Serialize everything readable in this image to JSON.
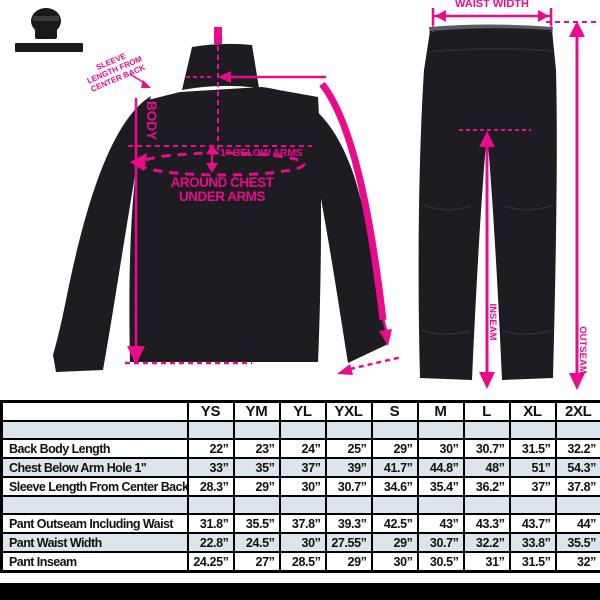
{
  "colors": {
    "accent_pink": "#ea0a8c",
    "garment_black": "#1d1d21",
    "row_stripe": "#dce4ec",
    "border_black": "#000000"
  },
  "diagram": {
    "jacket": {
      "sleeve_label_lines": [
        "SLEEVE",
        "LENGTH FROM",
        "CENTER BACK"
      ],
      "body_label": "BODY",
      "below_arms_label": "1\" BELOW ARMS",
      "around_chest_line1": "AROUND CHEST",
      "around_chest_line2": "UNDER ARMS"
    },
    "pants": {
      "waist_label": "WAIST WIDTH",
      "outseam_label": "OUTSEAM",
      "inseam_label": "INSEAM"
    }
  },
  "table": {
    "size_columns": [
      "YS",
      "YM",
      "YL",
      "YXL",
      "S",
      "M",
      "L",
      "XL",
      "2XL"
    ],
    "jacket_rows": [
      {
        "label": "Back Body Length",
        "values": [
          "22”",
          "23”",
          "24”",
          "25”",
          "29”",
          "30”",
          "30.7”",
          "31.5”",
          "32.2”"
        ]
      },
      {
        "label": "Chest Below Arm Hole 1\"",
        "values": [
          "33”",
          "35”",
          "37”",
          "39”",
          "41.7”",
          "44.8”",
          "48”",
          "51”",
          "54.3”"
        ]
      },
      {
        "label": "Sleeve Length From Center Back",
        "values": [
          "28.3”",
          "29”",
          "30”",
          "30.7”",
          "34.6”",
          "35.4”",
          "36.2”",
          "37”",
          "37.8”"
        ]
      }
    ],
    "pant_rows": [
      {
        "label": "Pant Outseam Including Waist",
        "values": [
          "31.8”",
          "35.5”",
          "37.8”",
          "39.3”",
          "42.5”",
          "43”",
          "43.3”",
          "43.7”",
          "44”"
        ]
      },
      {
        "label": "Pant Waist Width",
        "values": [
          "22.8”",
          "24.5”",
          "30”",
          "27.55”",
          "29”",
          "30.7”",
          "32.2”",
          "33.8”",
          "35.5”"
        ]
      },
      {
        "label": "Pant Inseam",
        "values": [
          "24.25”",
          "27”",
          "28.5”",
          "29”",
          "30”",
          "30.5”",
          "31”",
          "31.5”",
          "32”"
        ]
      }
    ]
  }
}
